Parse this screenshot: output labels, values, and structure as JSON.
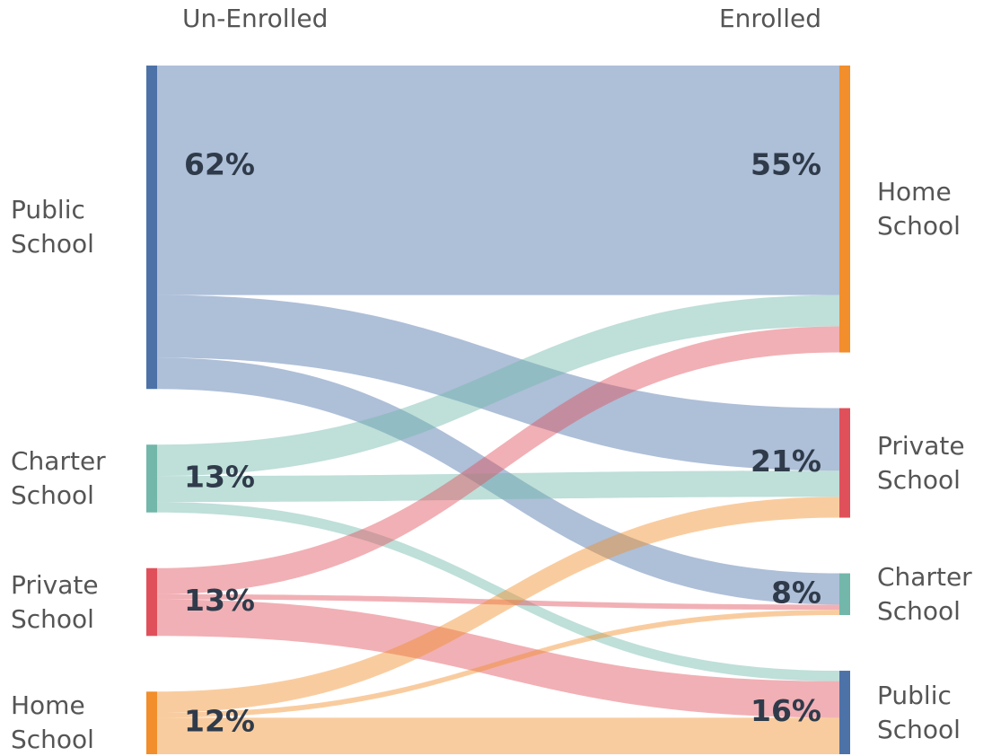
{
  "chart_data": {
    "type": "sankey",
    "column_titles": [
      "Un-Enrolled",
      "Enrolled"
    ],
    "sources": [
      {
        "name": "Public School",
        "value": 62,
        "value_label": "62%",
        "color": "#4c72a8"
      },
      {
        "name": "Charter School",
        "value": 13,
        "value_label": "13%",
        "color": "#72b7aa"
      },
      {
        "name": "Private School",
        "value": 13,
        "value_label": "13%",
        "color": "#e0505a"
      },
      {
        "name": "Home School",
        "value": 12,
        "value_label": "12%",
        "color": "#f28e2b"
      }
    ],
    "targets": [
      {
        "name": "Home School",
        "value": 55,
        "value_label": "55%",
        "color": "#f28e2b"
      },
      {
        "name": "Private School",
        "value": 21,
        "value_label": "21%",
        "color": "#e0505a"
      },
      {
        "name": "Charter School",
        "value": 8,
        "value_label": "8%",
        "color": "#72b7aa"
      },
      {
        "name": "Public School",
        "value": 16,
        "value_label": "16%",
        "color": "#4c72a8"
      }
    ],
    "links": [
      {
        "source": 0,
        "target": 0,
        "value": 44
      },
      {
        "source": 0,
        "target": 1,
        "value": 12
      },
      {
        "source": 0,
        "target": 2,
        "value": 6
      },
      {
        "source": 1,
        "target": 0,
        "value": 6
      },
      {
        "source": 1,
        "target": 1,
        "value": 5
      },
      {
        "source": 1,
        "target": 3,
        "value": 2
      },
      {
        "source": 2,
        "target": 0,
        "value": 5
      },
      {
        "source": 2,
        "target": 2,
        "value": 1
      },
      {
        "source": 2,
        "target": 3,
        "value": 7
      },
      {
        "source": 3,
        "target": 1,
        "value": 4
      },
      {
        "source": 3,
        "target": 2,
        "value": 1
      },
      {
        "source": 3,
        "target": 3,
        "value": 7
      }
    ]
  }
}
